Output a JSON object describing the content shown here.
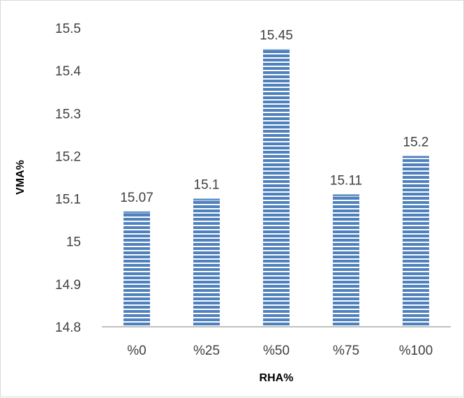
{
  "chart_data": {
    "type": "bar",
    "title": "",
    "xlabel": "RHA%",
    "ylabel": "VMA%",
    "categories": [
      "%0",
      "%25",
      "%50",
      "%75",
      "%100"
    ],
    "values": [
      15.07,
      15.1,
      15.45,
      15.11,
      15.2
    ],
    "data_labels": [
      "15.07",
      "15.1",
      "15.45",
      "15.11",
      "15.2"
    ],
    "ylim": [
      14.8,
      15.5
    ],
    "yticks": [
      "14.8",
      "14.9",
      "15",
      "15.1",
      "15.2",
      "15.3",
      "15.4",
      "15.5"
    ],
    "grid": false,
    "legend": "none",
    "bar_fill": "#4f81bd",
    "bar_stripe": "#ffffff",
    "axis_color": "#bfbfbf"
  }
}
